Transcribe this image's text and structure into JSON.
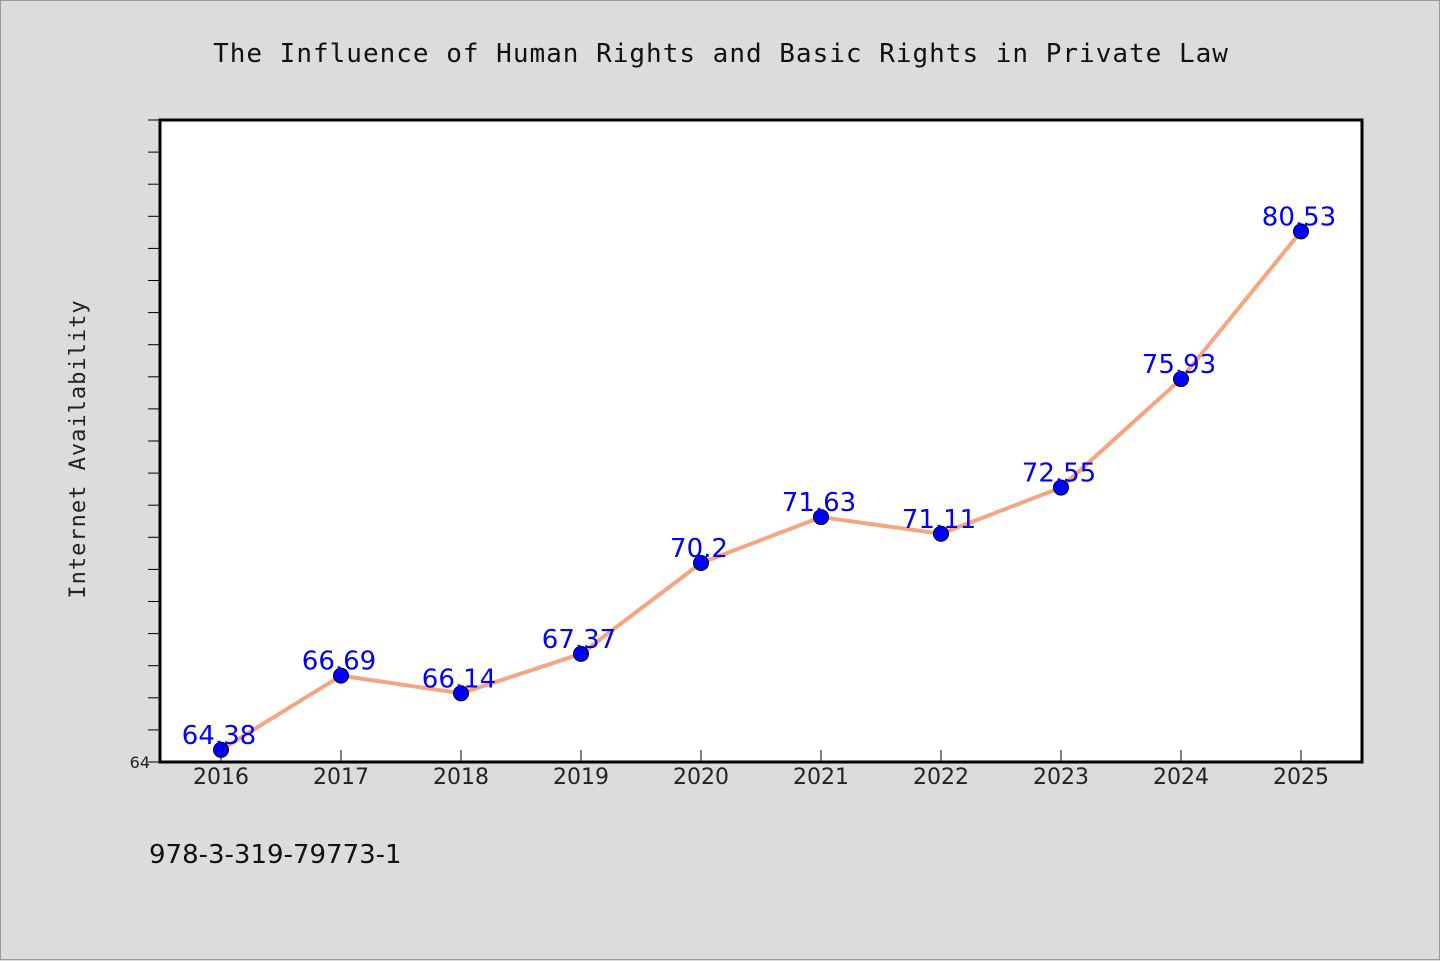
{
  "chart_data": {
    "type": "line",
    "title": "The Influence of Human Rights and Basic Rights in Private Law",
    "xlabel": "",
    "ylabel": "Internet Availability",
    "categories": [
      "2016",
      "2017",
      "2018",
      "2019",
      "2020",
      "2021",
      "2022",
      "2023",
      "2024",
      "2025"
    ],
    "series": [
      {
        "values": [
          64.38,
          66.69,
          66.14,
          67.37,
          70.2,
          71.63,
          71.11,
          72.55,
          75.93,
          80.53
        ]
      }
    ],
    "ylim": [
      64,
      84
    ],
    "ytick_labels": [
      "64"
    ],
    "grid": false,
    "colors": {
      "line": "#f4a582",
      "marker": "#0000ff",
      "label": "#0000ff"
    }
  },
  "footnote": "978-3-319-79773-1"
}
